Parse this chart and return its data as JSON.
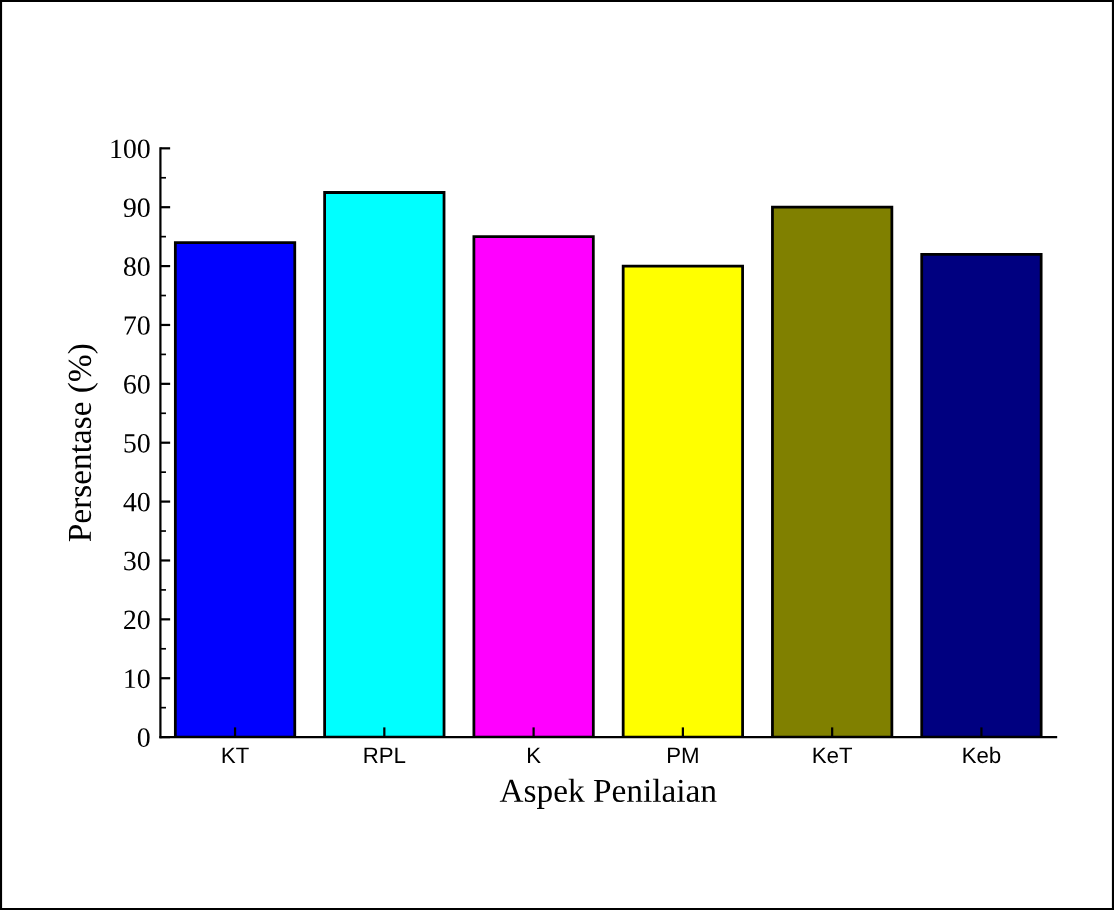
{
  "chart_data": {
    "type": "bar",
    "xlabel": "Aspek Penilaian",
    "ylabel": "Persentase (%)",
    "categories": [
      "KT",
      "RPL",
      "K",
      "PM",
      "KeT",
      "Keb"
    ],
    "values": [
      84,
      92.5,
      85,
      80,
      90,
      82
    ],
    "colors": [
      "#0000ff",
      "#00ffff",
      "#ff00ff",
      "#ffff00",
      "#808000",
      "#000080"
    ],
    "ylim": [
      0,
      100
    ],
    "yticks": [
      0,
      10,
      20,
      30,
      40,
      50,
      60,
      70,
      80,
      90,
      100
    ],
    "grid": false
  }
}
